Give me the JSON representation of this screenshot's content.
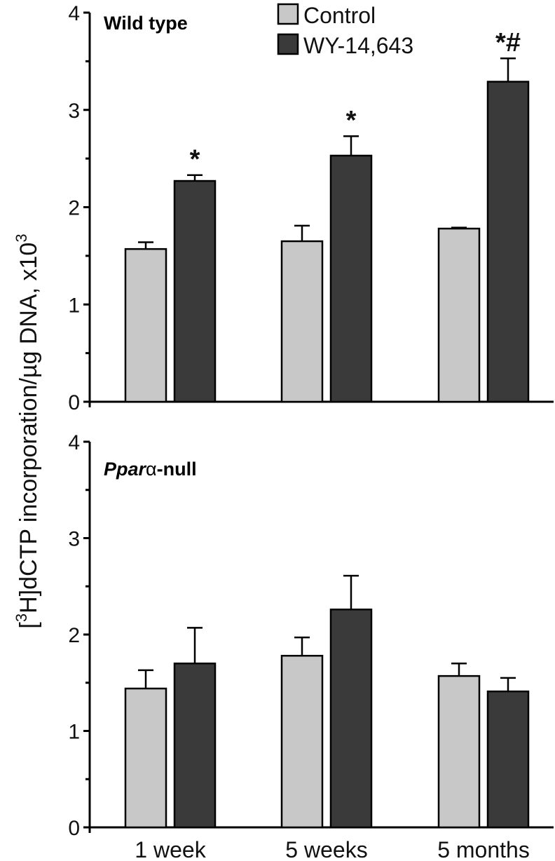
{
  "ylabel_prefix": "[",
  "ylabel_sup": "3",
  "ylabel_main": "H]dCTP incorporation/µg DNA, x10",
  "ylabel_exp": "3",
  "legend": [
    {
      "name": "Control",
      "color": "#c8c8c8"
    },
    {
      "name": "WY-14,643",
      "color": "#3a3a3a"
    }
  ],
  "chart_data": [
    {
      "type": "bar",
      "panel_label": "Wild type",
      "categories": [
        "1 week",
        "5 weeks",
        "5 months"
      ],
      "ylim": [
        0,
        4
      ],
      "yticks": [
        0,
        1,
        2,
        3,
        4
      ],
      "series": [
        {
          "name": "Control",
          "values": [
            1.57,
            1.65,
            1.78
          ],
          "errors": [
            0.07,
            0.16,
            0.01
          ],
          "color": "#c8c8c8"
        },
        {
          "name": "WY-14,643",
          "values": [
            2.27,
            2.53,
            3.29
          ],
          "errors": [
            0.06,
            0.2,
            0.24
          ],
          "color": "#3a3a3a"
        }
      ],
      "annotations": [
        {
          "category": "1 week",
          "series": "WY-14,643",
          "text": "*"
        },
        {
          "category": "5 weeks",
          "series": "WY-14,643",
          "text": "*"
        },
        {
          "category": "5 months",
          "series": "WY-14,643",
          "text": "*#"
        }
      ]
    },
    {
      "type": "bar",
      "panel_label_italic": "Ppar",
      "panel_label_greek": "α",
      "panel_label_rest": "-null",
      "categories": [
        "1 week",
        "5 weeks",
        "5 months"
      ],
      "ylim": [
        0,
        4
      ],
      "yticks": [
        0,
        1,
        2,
        3,
        4
      ],
      "series": [
        {
          "name": "Control",
          "values": [
            1.44,
            1.78,
            1.57
          ],
          "errors": [
            0.19,
            0.19,
            0.13
          ],
          "color": "#c8c8c8"
        },
        {
          "name": "WY-14,643",
          "values": [
            1.7,
            2.26,
            1.41
          ],
          "errors": [
            0.37,
            0.35,
            0.14
          ],
          "color": "#3a3a3a"
        }
      ]
    }
  ]
}
